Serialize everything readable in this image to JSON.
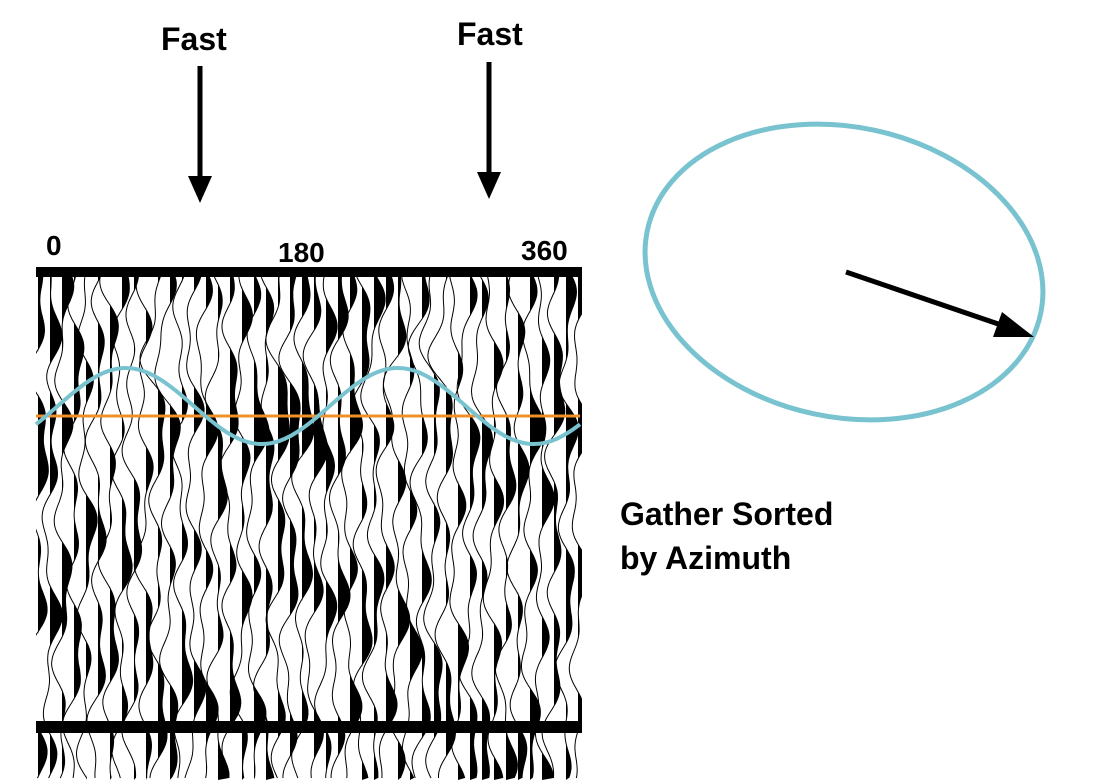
{
  "labels": {
    "fast_left": "Fast",
    "fast_right": "Fast",
    "az_0": "0",
    "az_180": "180",
    "az_360": "360",
    "caption_line1": "Gather Sorted",
    "caption_line2": "by Azimuth"
  },
  "colors": {
    "background": "#ffffff",
    "ink": "#000000",
    "ellipse": "#78c3cf",
    "sine_curve": "#78c3cf",
    "reference_line": "#f0902a"
  },
  "icons": {
    "arrow": "down-arrow-icon",
    "vector": "pointer-arrow-icon"
  }
}
